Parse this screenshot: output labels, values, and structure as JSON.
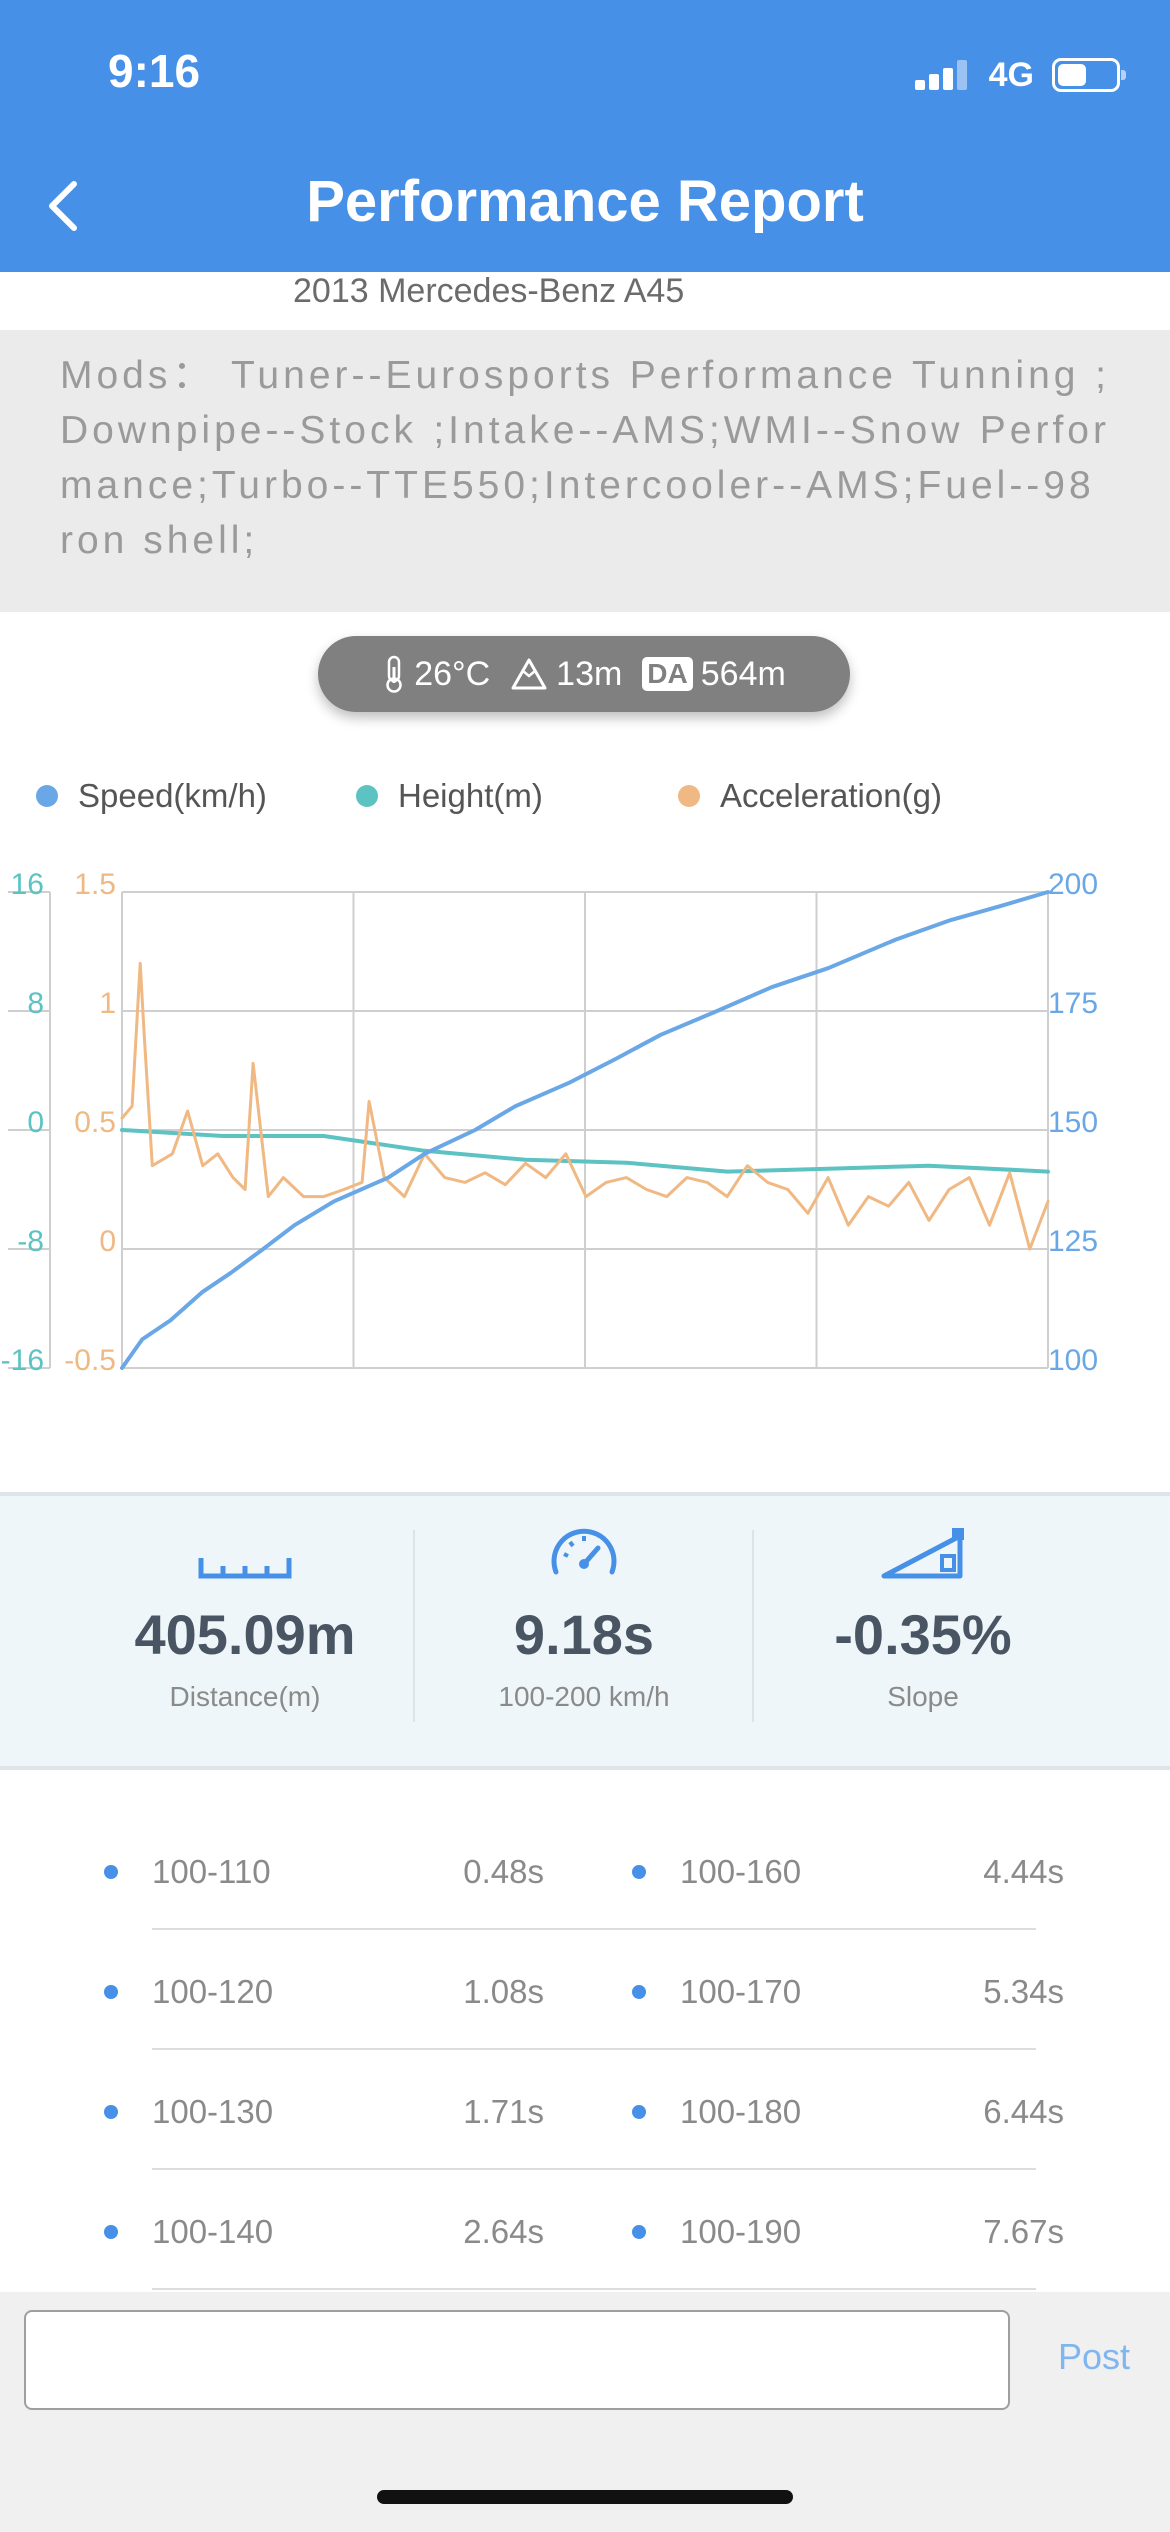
{
  "status_bar": {
    "time": "9:16",
    "network": "4G"
  },
  "header": {
    "title": "Performance Report"
  },
  "car": {
    "name": "2013 Mercedes-Benz A45"
  },
  "mods": {
    "text": "Mods：  Tuner--Eurosports Performance Tunning ;Downpipe--Stock ;Intake--AMS;WMI--Snow Performance;Turbo--TTE550;Intercooler--AMS;Fuel--98ron shell;"
  },
  "conditions": {
    "temperature": "26°C",
    "altitude": "13m",
    "da_label": "DA",
    "density_altitude": "564m"
  },
  "legend": [
    {
      "label": "Speed(km/h)",
      "color": "#6aa7e6"
    },
    {
      "label": "Height(m)",
      "color": "#5cc2c2"
    },
    {
      "label": "Acceleration(g)",
      "color": "#f0b882"
    }
  ],
  "chart_data": {
    "type": "line",
    "x_range": [
      0,
      9.18
    ],
    "axes": {
      "height": {
        "ticks": [
          "16",
          "8",
          "0",
          "-8",
          "-16"
        ],
        "range": [
          -16,
          16
        ],
        "color": "#5cc2c2"
      },
      "acceleration": {
        "ticks": [
          "1.5",
          "1",
          "0.5",
          "0",
          "-0.5"
        ],
        "range": [
          -0.5,
          1.5
        ],
        "color": "#f0b882"
      },
      "speed": {
        "ticks": [
          "200",
          "175",
          "150",
          "125",
          "100"
        ],
        "range": [
          100,
          200
        ],
        "color": "#6aa7e6"
      }
    },
    "grid": true,
    "series": [
      {
        "name": "Speed(km/h)",
        "axis": "speed",
        "color": "#6aa7e6",
        "x": [
          0,
          0.2,
          0.48,
          0.8,
          1.08,
          1.4,
          1.71,
          2.1,
          2.64,
          3.0,
          3.5,
          3.9,
          4.44,
          4.9,
          5.34,
          5.9,
          6.44,
          7.0,
          7.67,
          8.2,
          8.7,
          9.18
        ],
        "values": [
          100,
          106,
          110,
          116,
          120,
          125,
          130,
          135,
          140,
          145,
          150,
          155,
          160,
          165,
          170,
          175,
          180,
          184,
          190,
          194,
          197,
          200
        ]
      },
      {
        "name": "Height(m)",
        "axis": "height",
        "color": "#5cc2c2",
        "x": [
          0,
          1,
          2,
          3,
          4,
          5,
          6,
          7,
          8,
          9.18
        ],
        "values": [
          0,
          -0.4,
          -0.4,
          -1.4,
          -2.0,
          -2.2,
          -2.8,
          -2.6,
          -2.4,
          -2.8
        ]
      },
      {
        "name": "Acceleration(g)",
        "axis": "acceleration",
        "color": "#f0b882",
        "x": [
          0,
          0.1,
          0.18,
          0.22,
          0.3,
          0.5,
          0.65,
          0.8,
          0.95,
          1.1,
          1.22,
          1.3,
          1.45,
          1.6,
          1.8,
          2.0,
          2.2,
          2.38,
          2.45,
          2.6,
          2.8,
          3.0,
          3.2,
          3.4,
          3.6,
          3.8,
          4.0,
          4.2,
          4.4,
          4.6,
          4.8,
          5.0,
          5.2,
          5.4,
          5.6,
          5.8,
          6.0,
          6.2,
          6.4,
          6.6,
          6.8,
          7.0,
          7.2,
          7.4,
          7.6,
          7.8,
          8.0,
          8.2,
          8.4,
          8.6,
          8.8,
          9.0,
          9.18
        ],
        "values": [
          0.55,
          0.6,
          1.2,
          0.9,
          0.35,
          0.4,
          0.58,
          0.35,
          0.4,
          0.3,
          0.25,
          0.78,
          0.22,
          0.3,
          0.22,
          0.22,
          0.25,
          0.28,
          0.62,
          0.3,
          0.22,
          0.4,
          0.3,
          0.28,
          0.32,
          0.27,
          0.36,
          0.3,
          0.4,
          0.22,
          0.28,
          0.3,
          0.25,
          0.22,
          0.3,
          0.28,
          0.22,
          0.35,
          0.28,
          0.25,
          0.15,
          0.3,
          0.1,
          0.22,
          0.18,
          0.28,
          0.12,
          0.25,
          0.3,
          0.1,
          0.32,
          0.0,
          0.2
        ]
      }
    ]
  },
  "stats": [
    {
      "value": "405.09m",
      "label": "Distance(m)",
      "icon": "ruler-icon"
    },
    {
      "value": "9.18s",
      "label": "100-200 km/h",
      "icon": "speedometer-icon"
    },
    {
      "value": "-0.35%",
      "label": "Slope",
      "icon": "slope-icon"
    }
  ],
  "splits": [
    {
      "range": "100-110",
      "time": "0.48s"
    },
    {
      "range": "100-160",
      "time": "4.44s"
    },
    {
      "range": "100-120",
      "time": "1.08s"
    },
    {
      "range": "100-170",
      "time": "5.34s"
    },
    {
      "range": "100-130",
      "time": "1.71s"
    },
    {
      "range": "100-180",
      "time": "6.44s"
    },
    {
      "range": "100-140",
      "time": "2.64s"
    },
    {
      "range": "100-190",
      "time": "7.67s"
    }
  ],
  "footer": {
    "input_placeholder": "",
    "post_label": "Post"
  }
}
